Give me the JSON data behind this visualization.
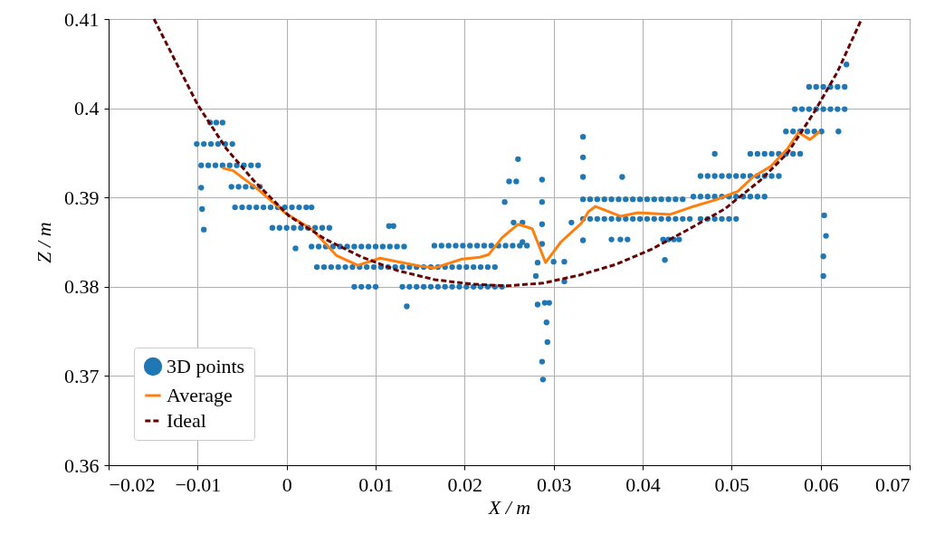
{
  "chart_data": {
    "type": "scatter",
    "xlabel": "X / m",
    "ylabel": "Z / m",
    "xlim": [
      -0.02,
      0.07
    ],
    "ylim": [
      0.36,
      0.41
    ],
    "xticks": [
      {
        "value": -0.02,
        "label": "−0.02"
      },
      {
        "value": -0.01,
        "label": "−0.01"
      },
      0,
      0.01,
      0.02,
      0.03,
      0.04,
      0.05,
      0.06,
      0.07
    ],
    "yticks": [
      0.36,
      0.37,
      0.38,
      0.39,
      0.4,
      0.41
    ],
    "grid": true,
    "legend": "bottom left",
    "series": [
      {
        "name": "3D points",
        "marker": "circle",
        "color": "#1f77b4",
        "x": [
          -0.0086,
          -0.0079,
          -0.0072,
          -0.0101,
          -0.0093,
          -0.0085,
          -0.0077,
          -0.0069,
          -0.0061,
          -0.0096,
          -0.0088,
          -0.008,
          -0.0072,
          -0.0064,
          -0.0056,
          -0.0048,
          -0.004,
          -0.0032,
          -0.0062,
          -0.0054,
          -0.0046,
          -0.0038,
          -0.003,
          -0.0096,
          -0.0058,
          -0.005,
          -0.0042,
          -0.0034,
          -0.0026,
          -0.0018,
          -0.001,
          -0.0002,
          0.0006,
          0.0014,
          0.0022,
          0.0028,
          -0.0095,
          -0.0016,
          -0.0008,
          0,
          0.0008,
          0.0016,
          0.0024,
          0.0032,
          0.004,
          0.0048,
          -0.0093,
          0.0028,
          0.0036,
          0.0044,
          0.0052,
          0.006,
          0.0068,
          0.0076,
          0.0084,
          0.0092,
          0.01,
          0.0108,
          0.0116,
          0.0124,
          0.0132,
          0.0115,
          0.012,
          0.0034,
          0.0042,
          0.005,
          0.0058,
          0.0066,
          0.0074,
          0.0082,
          0.009,
          0.0098,
          0.0106,
          0.0114,
          0.0122,
          0.013,
          0.0138,
          0.0146,
          0.0154,
          0.0162,
          0.017,
          0.0178,
          0.0186,
          0.0194,
          0.0202,
          0.021,
          0.0218,
          0.0226,
          0.0234,
          0.0076,
          0.0084,
          0.0092,
          0.01,
          0.013,
          0.0138,
          0.0146,
          0.0154,
          0.0162,
          0.017,
          0.0178,
          0.0186,
          0.0194,
          0.0202,
          0.021,
          0.0218,
          0.0226,
          0.0234,
          0.0242,
          0.0166,
          0.0174,
          0.0182,
          0.019,
          0.0198,
          0.0206,
          0.0214,
          0.0222,
          0.023,
          0.0238,
          0.0246,
          0.0254,
          0.0262,
          0.027,
          0.0135,
          0.001,
          0.026,
          0.025,
          0.0258,
          0.0245,
          0.0255,
          0.0265,
          0.0265,
          0.0287,
          0.0287,
          0.0287,
          0.0287,
          0.0282,
          0.0282,
          0.029,
          0.0295,
          0.0292,
          0.0293,
          0.0287,
          0.0288,
          0.028,
          0.03,
          0.0312,
          0.0312,
          0.032,
          0.0333,
          0.0333,
          0.0333,
          0.0333,
          0.0333,
          0.0341,
          0.0349,
          0.0357,
          0.0365,
          0.0373,
          0.0381,
          0.0389,
          0.0397,
          0.0405,
          0.0413,
          0.0421,
          0.0429,
          0.0437,
          0.0445,
          0.0333,
          0.0341,
          0.0349,
          0.0357,
          0.0365,
          0.0373,
          0.0381,
          0.0389,
          0.0397,
          0.0405,
          0.0413,
          0.0421,
          0.0429,
          0.0437,
          0.0445,
          0.0453,
          0.0465,
          0.0473,
          0.0481,
          0.0489,
          0.0497,
          0.0505,
          0.0365,
          0.0375,
          0.0383,
          0.0423,
          0.0429,
          0.0435,
          0.0441,
          0.0425,
          0.0377,
          0.0457,
          0.0465,
          0.0473,
          0.0481,
          0.0489,
          0.0497,
          0.0505,
          0.0513,
          0.0521,
          0.0529,
          0.0537,
          0.0465,
          0.0473,
          0.0481,
          0.0489,
          0.0497,
          0.0505,
          0.0513,
          0.0521,
          0.0529,
          0.0537,
          0.0545,
          0.0553,
          0.0481,
          0.0521,
          0.0529,
          0.0537,
          0.0545,
          0.0553,
          0.0561,
          0.0569,
          0.0577,
          0.0561,
          0.0569,
          0.0577,
          0.0585,
          0.0593,
          0.0601,
          0.062,
          0.0571,
          0.0579,
          0.0587,
          0.0595,
          0.0603,
          0.0611,
          0.0619,
          0.0627,
          0.0587,
          0.0595,
          0.0603,
          0.0611,
          0.0619,
          0.0627,
          0.0629,
          0.0604,
          0.0606,
          0.0603,
          0.0603
        ],
        "values": [
          0.3984,
          0.3984,
          0.3984,
          0.396,
          0.396,
          0.396,
          0.396,
          0.396,
          0.396,
          0.3936,
          0.3936,
          0.3936,
          0.3936,
          0.3936,
          0.3936,
          0.3936,
          0.3936,
          0.3936,
          0.3912,
          0.3912,
          0.3912,
          0.3912,
          0.3912,
          0.3911,
          0.3889,
          0.3889,
          0.3889,
          0.3889,
          0.3889,
          0.3889,
          0.3889,
          0.3889,
          0.3889,
          0.3889,
          0.3889,
          0.3889,
          0.3887,
          0.3866,
          0.3866,
          0.3866,
          0.3866,
          0.3866,
          0.3866,
          0.3866,
          0.3866,
          0.3866,
          0.3864,
          0.3845,
          0.3845,
          0.3845,
          0.3845,
          0.3845,
          0.3845,
          0.3845,
          0.3845,
          0.3845,
          0.3845,
          0.3845,
          0.3845,
          0.3845,
          0.3845,
          0.3868,
          0.3868,
          0.3822,
          0.3822,
          0.3822,
          0.3822,
          0.3822,
          0.3822,
          0.3822,
          0.3822,
          0.3822,
          0.3822,
          0.3822,
          0.3822,
          0.3822,
          0.3822,
          0.3822,
          0.3822,
          0.3822,
          0.3822,
          0.3822,
          0.3822,
          0.3822,
          0.3822,
          0.3822,
          0.3822,
          0.3822,
          0.3822,
          0.38,
          0.38,
          0.38,
          0.38,
          0.38,
          0.38,
          0.38,
          0.38,
          0.38,
          0.38,
          0.38,
          0.38,
          0.38,
          0.38,
          0.38,
          0.38,
          0.38,
          0.38,
          0.38,
          0.3846,
          0.3846,
          0.3846,
          0.3846,
          0.3846,
          0.3846,
          0.3846,
          0.3846,
          0.3846,
          0.3846,
          0.3846,
          0.3846,
          0.3846,
          0.3846,
          0.3778,
          0.3843,
          0.3943,
          0.3918,
          0.3918,
          0.3895,
          0.3872,
          0.3872,
          0.385,
          0.392,
          0.3895,
          0.387,
          0.3848,
          0.3827,
          0.378,
          0.3782,
          0.3782,
          0.376,
          0.3738,
          0.3716,
          0.3696,
          0.3812,
          0.3828,
          0.3828,
          0.3806,
          0.3872,
          0.3968,
          0.3945,
          0.3923,
          0.3852,
          0.3898,
          0.3898,
          0.3898,
          0.3898,
          0.3898,
          0.3898,
          0.3898,
          0.3898,
          0.3898,
          0.3898,
          0.3898,
          0.3898,
          0.3898,
          0.3898,
          0.3898,
          0.3876,
          0.3876,
          0.3876,
          0.3876,
          0.3876,
          0.3876,
          0.3876,
          0.3876,
          0.3876,
          0.3876,
          0.3876,
          0.3876,
          0.3876,
          0.3876,
          0.3876,
          0.3876,
          0.3876,
          0.3876,
          0.3876,
          0.3876,
          0.3876,
          0.3876,
          0.3853,
          0.3853,
          0.3853,
          0.3853,
          0.3853,
          0.3853,
          0.3853,
          0.383,
          0.3923,
          0.3901,
          0.3901,
          0.3901,
          0.3901,
          0.3901,
          0.3901,
          0.3901,
          0.3901,
          0.3901,
          0.3901,
          0.3901,
          0.3924,
          0.3924,
          0.3924,
          0.3924,
          0.3924,
          0.3924,
          0.3924,
          0.3924,
          0.3924,
          0.3924,
          0.3924,
          0.3924,
          0.3949,
          0.3949,
          0.3949,
          0.3949,
          0.3949,
          0.3949,
          0.3949,
          0.3949,
          0.3949,
          0.3974,
          0.3974,
          0.3974,
          0.3974,
          0.3974,
          0.3974,
          0.3974,
          0.3999,
          0.3999,
          0.3999,
          0.3999,
          0.3999,
          0.3999,
          0.3999,
          0.3999,
          0.4024,
          0.4024,
          0.4024,
          0.4024,
          0.4024,
          0.4024,
          0.4049,
          0.388,
          0.3857,
          0.3834,
          0.3812
        ]
      },
      {
        "name": "Average",
        "type": "line",
        "line_style": "solid",
        "color": "#ff7f0e",
        "x": [
          -0.0072,
          -0.006,
          -0.0032,
          -0.0002,
          0.0029,
          0.0056,
          0.008,
          0.0105,
          0.0125,
          0.0151,
          0.0166,
          0.0197,
          0.0217,
          0.0227,
          0.0242,
          0.026,
          0.0276,
          0.0291,
          0.0308,
          0.0331,
          0.0339,
          0.0347,
          0.0375,
          0.0395,
          0.0431,
          0.0454,
          0.0481,
          0.0507,
          0.0524,
          0.0544,
          0.0563,
          0.0575,
          0.0588,
          0.0599
        ],
        "values": [
          0.3933,
          0.393,
          0.3909,
          0.3883,
          0.3864,
          0.3835,
          0.3824,
          0.3832,
          0.3828,
          0.3823,
          0.3821,
          0.3831,
          0.3833,
          0.3836,
          0.3855,
          0.387,
          0.3865,
          0.3827,
          0.385,
          0.3871,
          0.3884,
          0.389,
          0.3879,
          0.3883,
          0.3881,
          0.3889,
          0.3897,
          0.3907,
          0.3923,
          0.3935,
          0.3955,
          0.3973,
          0.3965,
          0.3974
        ]
      },
      {
        "name": "Ideal",
        "type": "line",
        "line_style": "dashed",
        "color": "#660000",
        "x": [
          -0.0149,
          -0.0124,
          -0.01,
          -0.0068,
          -0.0037,
          0.0003,
          0.0044,
          0.0085,
          0.0125,
          0.0166,
          0.0207,
          0.0247,
          0.0288,
          0.0329,
          0.037,
          0.041,
          0.0451,
          0.0492,
          0.0532,
          0.0563,
          0.0593,
          0.0619,
          0.0646
        ],
        "values": [
          0.41,
          0.4051,
          0.4004,
          0.3955,
          0.3919,
          0.3879,
          0.3853,
          0.3833,
          0.3818,
          0.3808,
          0.3803,
          0.3801,
          0.3804,
          0.3813,
          0.3825,
          0.3842,
          0.3864,
          0.3887,
          0.3919,
          0.395,
          0.3996,
          0.4041,
          0.41
        ]
      }
    ]
  }
}
